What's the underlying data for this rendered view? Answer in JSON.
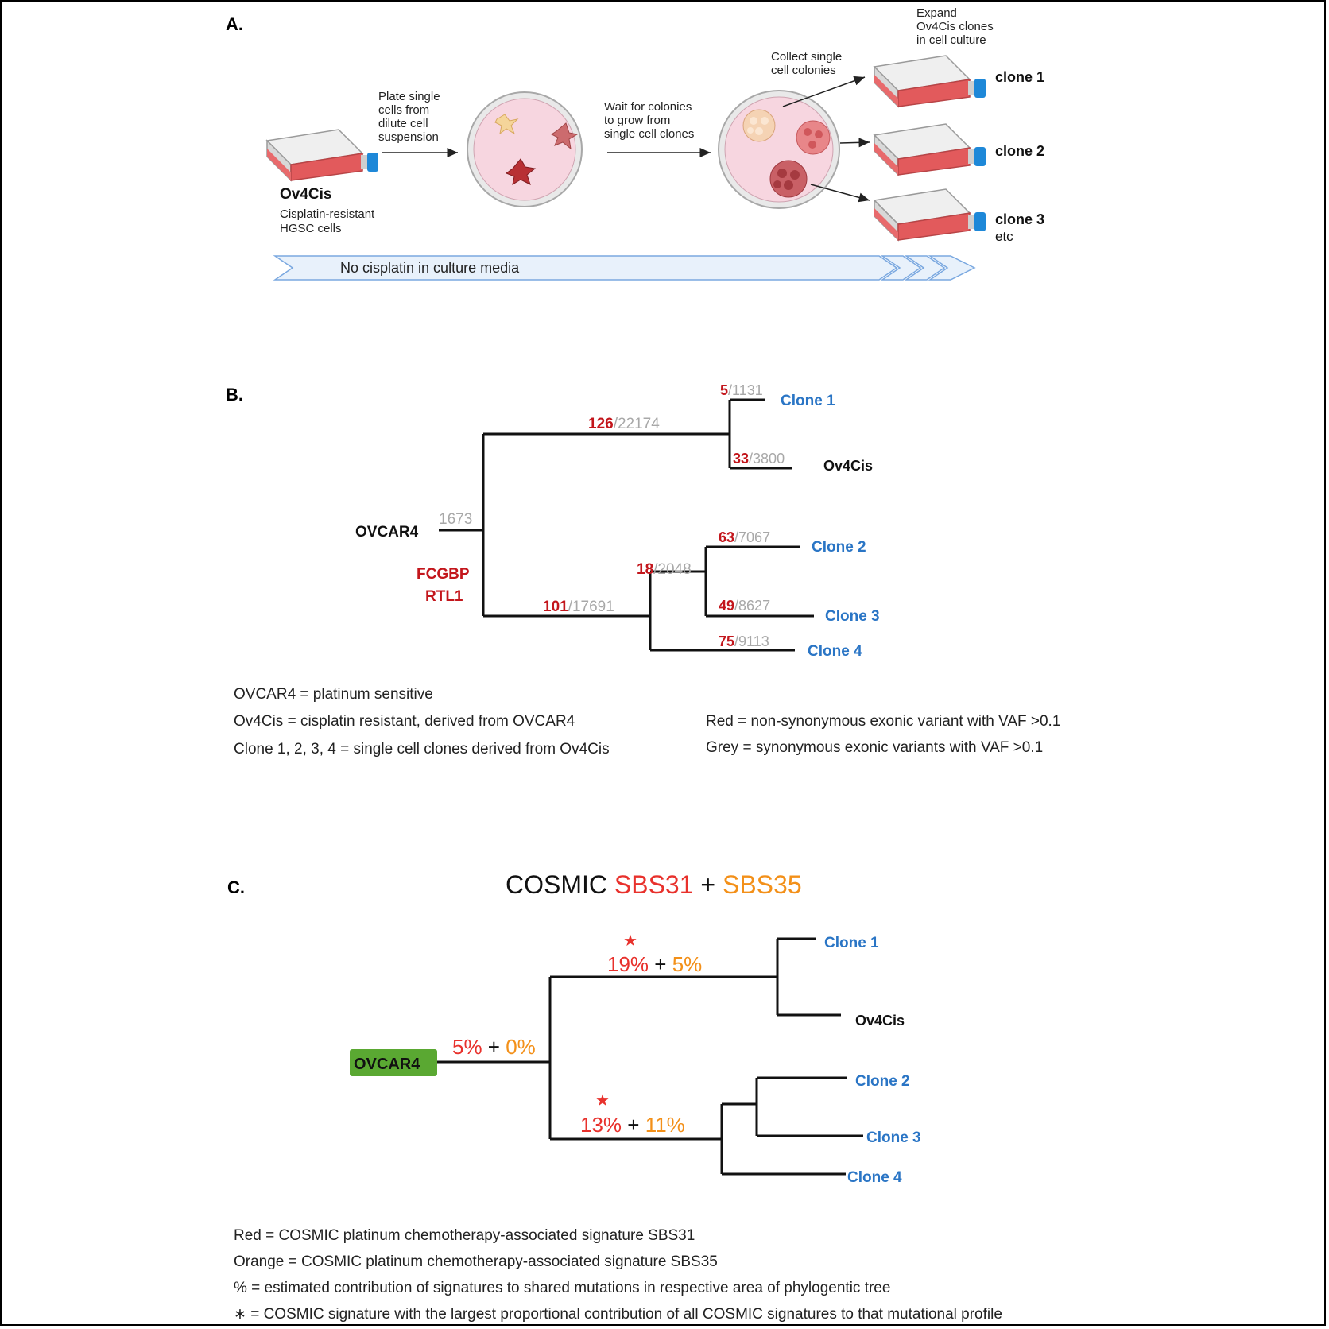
{
  "panel_a": {
    "label": "A.",
    "start_name": "Ov4Cis",
    "start_desc": [
      "Cisplatin-resistant",
      "HGSC cells"
    ],
    "step1": [
      "Plate single",
      "cells from",
      "dilute cell",
      "suspension"
    ],
    "step2": [
      "Wait for colonies",
      "to grow from",
      "single cell clones"
    ],
    "step3": [
      "Collect single",
      "cell colonies"
    ],
    "step4": [
      "Expand",
      "Ov4Cis clones",
      "in cell culture"
    ],
    "clones": [
      "clone 1",
      "clone 2",
      "clone 3"
    ],
    "etc": "etc",
    "banner": "No cisplatin in culture media",
    "colors": {
      "flask_red": "#e25a5c",
      "cap_blue": "#1e88d8",
      "dish": "#f7d6e0",
      "banner": "#e8f1fb"
    }
  },
  "panel_b": {
    "label": "B.",
    "root": "OVCAR4",
    "root_count": "1673",
    "root_genes": [
      "FCGBP",
      "RTL1"
    ],
    "upper_branch": {
      "red": "126",
      "grey": "/22174"
    },
    "lower_branch": {
      "red": "101",
      "grey": "/17691"
    },
    "sub_branch": {
      "red": "18",
      "grey": "/2048"
    },
    "leaves": [
      {
        "name": "Clone 1",
        "red": "5",
        "grey": "/1131"
      },
      {
        "name": "Ov4Cis",
        "red": "33",
        "grey": "/3800"
      },
      {
        "name": "Clone 2",
        "red": "63",
        "grey": "/7067"
      },
      {
        "name": "Clone 3",
        "red": "49",
        "grey": "/8627"
      },
      {
        "name": "Clone 4",
        "red": "75",
        "grey": "/9113"
      }
    ],
    "legend_left": [
      "OVCAR4 = platinum sensitive",
      "Ov4Cis = cisplatin resistant, derived from OVCAR4",
      "Clone 1, 2, 3, 4 = single cell clones derived from Ov4Cis"
    ],
    "legend_right": [
      "Red = non-synonymous exonic variant with VAF >0.1",
      "Grey = synonymous exonic variants with VAF >0.1"
    ]
  },
  "panel_c": {
    "label": "C.",
    "title_prefix": "COSMIC ",
    "title_sig1": "SBS31",
    "title_plus": " + ",
    "title_sig2": "SBS35",
    "root": "OVCAR4",
    "root_sig": {
      "a": "5%",
      "plus": " + ",
      "b": "0%"
    },
    "upper_sig": {
      "a": "19%",
      "plus": " + ",
      "b": "5%"
    },
    "lower_sig": {
      "a": "13%",
      "plus": " + ",
      "b": "11%"
    },
    "star": "★",
    "leaves": [
      "Clone 1",
      "Ov4Cis",
      "Clone 2",
      "Clone 3",
      "Clone 4"
    ],
    "legend": [
      "Red = COSMIC platinum chemotherapy-associated signature SBS31",
      "Orange = COSMIC platinum chemotherapy-associated signature SBS35",
      "% = estimated contribution of signatures to shared mutations in respective area of phylogentic tree",
      "∗  = COSMIC signature with the largest proportional contribution of all COSMIC signatures to that mutational profile"
    ],
    "colors": {
      "red": "#e8312c",
      "orange": "#f39019",
      "green": "#5aa832",
      "clone_blue": "#2a75c5"
    }
  }
}
